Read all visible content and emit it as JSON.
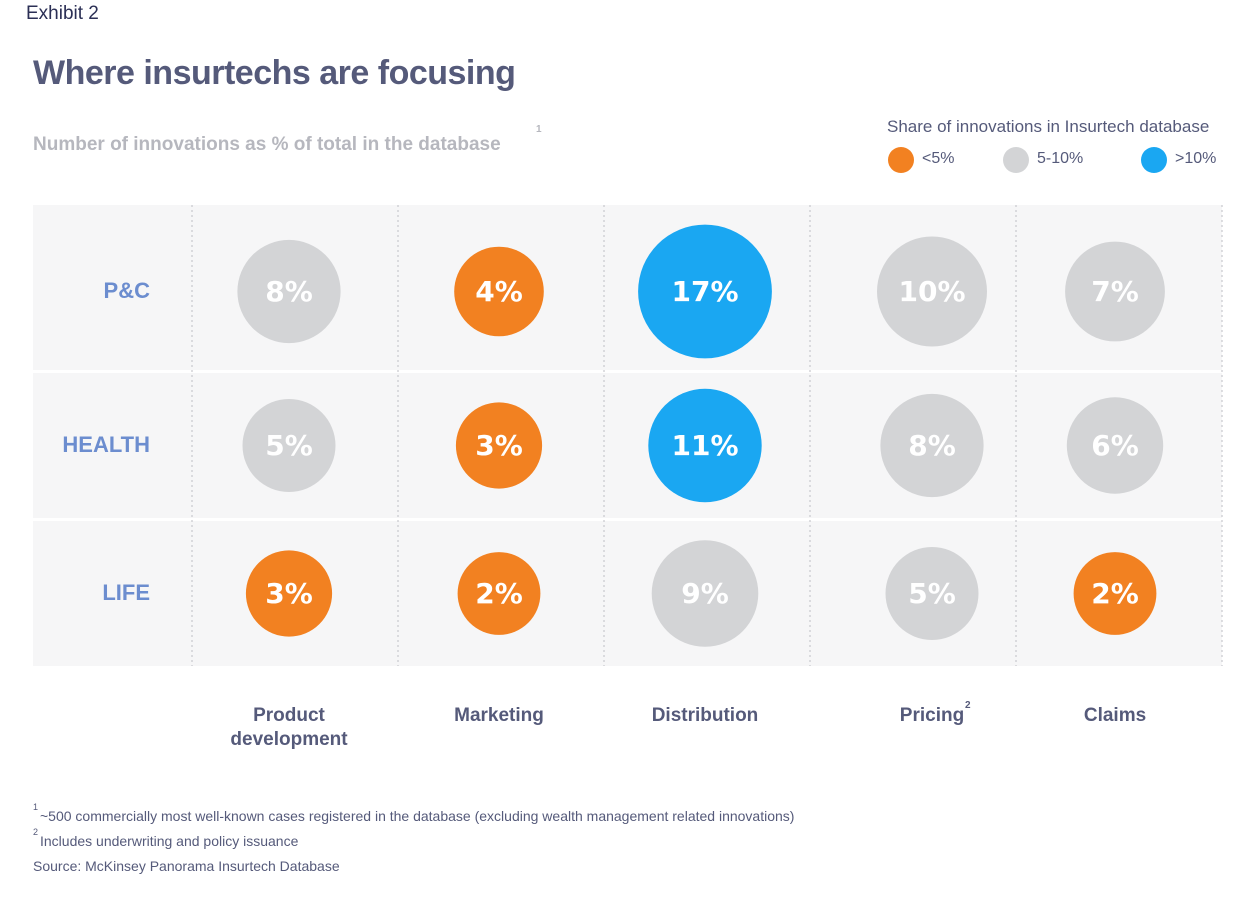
{
  "chart_data": {
    "type": "bubble-matrix",
    "exhibit": "Exhibit 2",
    "title": "Where insurtechs are focusing",
    "subtitle": "Number of innovations as % of total in the database",
    "subtitle_note": "1",
    "legend_title": "Share of innovations in Insurtech database",
    "legend": [
      {
        "label": "<5%",
        "color": "#f28121"
      },
      {
        "label": "5-10%",
        "color": "#d3d4d6"
      },
      {
        "label": ">10%",
        "color": "#1aa7f2"
      }
    ],
    "categories": [
      "Product development",
      "Marketing",
      "Distribution",
      "Pricing",
      "Claims"
    ],
    "category_notes": [
      null,
      null,
      null,
      "2",
      null
    ],
    "series": [
      {
        "name": "P&C",
        "values": [
          8,
          4,
          17,
          10,
          7
        ],
        "value_labels": [
          "8%",
          "4%",
          "17%",
          "10%",
          "7%"
        ],
        "colors": [
          "#d3d4d6",
          "#f28121",
          "#1aa7f2",
          "#d3d4d6",
          "#d3d4d6"
        ]
      },
      {
        "name": "HEALTH",
        "values": [
          5,
          3,
          11,
          8,
          6
        ],
        "value_labels": [
          "5%",
          "3%",
          "11%",
          "8%",
          "6%"
        ],
        "colors": [
          "#d3d4d6",
          "#f28121",
          "#1aa7f2",
          "#d3d4d6",
          "#d3d4d6"
        ]
      },
      {
        "name": "LIFE",
        "values": [
          3,
          2,
          9,
          5,
          2
        ],
        "value_labels": [
          "3%",
          "2%",
          "9%",
          "5%",
          "2%"
        ],
        "colors": [
          "#f28121",
          "#f28121",
          "#d3d4d6",
          "#d3d4d6",
          "#f28121"
        ]
      }
    ],
    "footnotes": [
      {
        "marker": "1",
        "text": "~500 commercially most well-known cases registered in the database (excluding wealth management related innovations)"
      },
      {
        "marker": "2",
        "text": "Includes underwriting and policy issuance"
      }
    ],
    "source": "Source: McKinsey Panorama Insurtech Database"
  }
}
